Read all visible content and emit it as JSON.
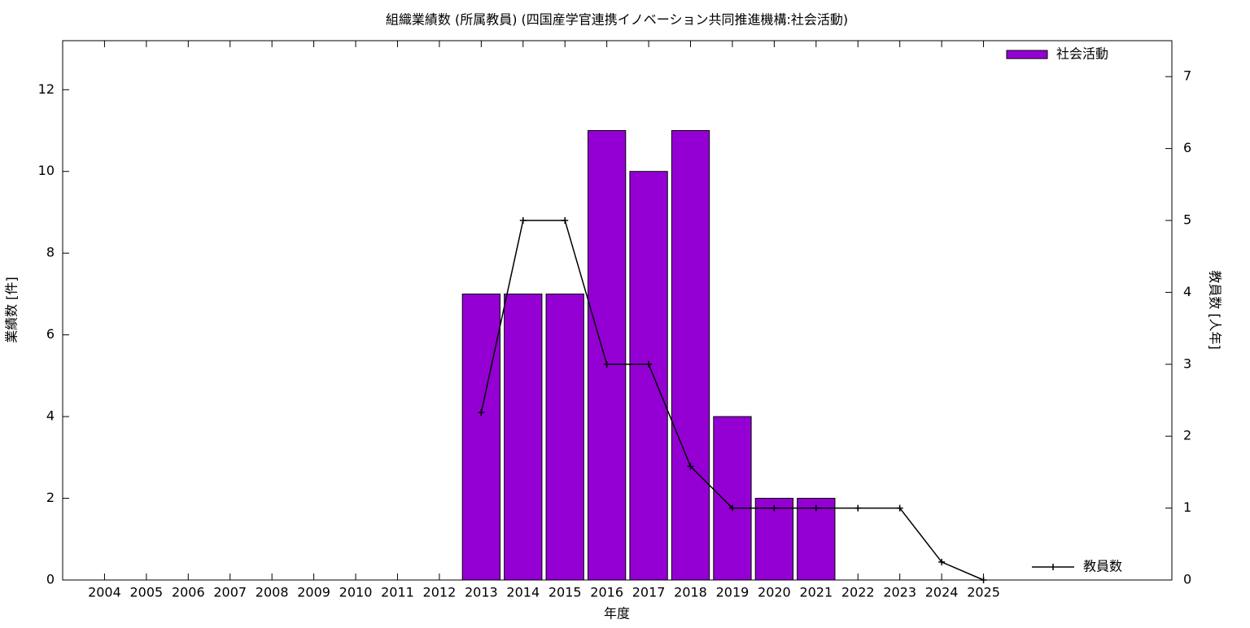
{
  "chart_data": {
    "type": "bar",
    "title": "組織業績数 (所属教員) (四国産学官連携イノベーション共同推進機構:社会活動)",
    "xlabel": "年度",
    "ylabel": "業績数 [件]",
    "y2label": "教員数 [人年]",
    "x": [
      2004,
      2005,
      2006,
      2007,
      2008,
      2009,
      2010,
      2011,
      2012,
      2013,
      2014,
      2015,
      2016,
      2017,
      2018,
      2019,
      2020,
      2021,
      2022,
      2023,
      2024,
      2025
    ],
    "xlim": [
      2003,
      2029.5
    ],
    "xticks": [
      2004,
      2005,
      2006,
      2007,
      2008,
      2009,
      2010,
      2011,
      2012,
      2013,
      2014,
      2015,
      2016,
      2017,
      2018,
      2019,
      2020,
      2021,
      2022,
      2023,
      2024,
      2025
    ],
    "ylim": [
      0,
      13.2
    ],
    "yticks": [
      0,
      2,
      4,
      6,
      8,
      10,
      12
    ],
    "y2lim": [
      0,
      7.5
    ],
    "y2ticks": [
      0,
      1,
      2,
      3,
      4,
      5,
      6,
      7
    ],
    "series": [
      {
        "name": "社会活動",
        "type": "bar",
        "color": "#9400d3",
        "values": [
          0,
          0,
          0,
          0,
          0,
          0,
          0,
          0,
          0,
          7,
          7,
          7,
          11,
          10,
          11,
          4,
          2,
          2,
          0,
          0,
          0,
          0
        ]
      },
      {
        "name": "教員数",
        "type": "line",
        "axis": "y2",
        "color": "#000000",
        "values": [
          null,
          null,
          null,
          null,
          null,
          null,
          null,
          null,
          null,
          2.33,
          5,
          5,
          3,
          3,
          1.58,
          1,
          1,
          1,
          1,
          1,
          0.25,
          0
        ]
      }
    ]
  }
}
